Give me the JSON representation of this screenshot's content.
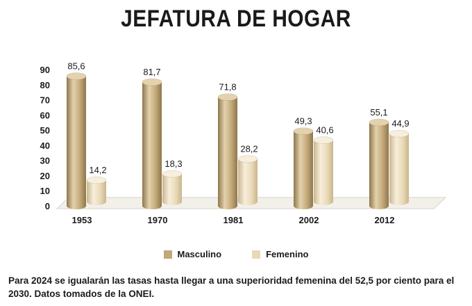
{
  "title": "JEFATURA DE HOGAR",
  "caption": "Para 2024 se igualarán las tasas hasta llegar a una superioridad femenina del 52,5 por ciento para el 2030. Datos tomados de la ONEI.",
  "colors": {
    "masculino": "#c2a878",
    "masculino_dark": "#8f764c",
    "masculino_light": "#e3d2ad",
    "femenino": "#ead9b6",
    "femenino_dark": "#c9b68e",
    "femenino_light": "#f7eedb",
    "floor": "#f3f0ea",
    "floor_edge": "#d9d3c8"
  },
  "chart_data": {
    "type": "bar",
    "categories": [
      "1953",
      "1970",
      "1981",
      "2002",
      "2012"
    ],
    "series": [
      {
        "name": "Masculino",
        "values": [
          85.6,
          81.7,
          71.8,
          49.3,
          55.1
        ],
        "labels": [
          "85,6",
          "81,7",
          "71,8",
          "49,3",
          "55,1"
        ]
      },
      {
        "name": "Femenino",
        "values": [
          14.2,
          18.3,
          28.2,
          40.6,
          44.9
        ],
        "labels": [
          "14,2",
          "18,3",
          "28,2",
          "40,6",
          "44,9"
        ]
      }
    ],
    "yticks": [
      "0",
      "10",
      "20",
      "30",
      "40",
      "50",
      "60",
      "70",
      "80",
      "90"
    ],
    "ylim": [
      0,
      90
    ],
    "legend_position": "bottom",
    "grid": false
  }
}
